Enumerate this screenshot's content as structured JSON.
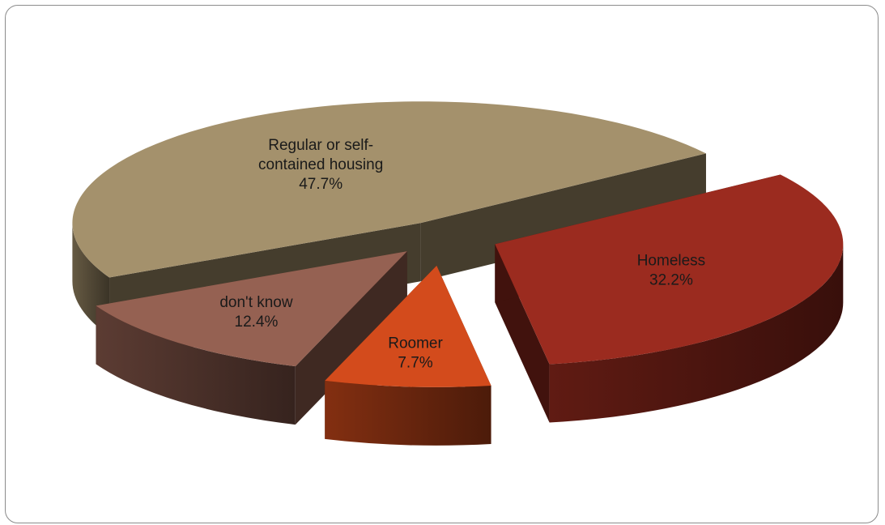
{
  "chart_data": {
    "type": "pie",
    "title": "",
    "legend": "none",
    "three_d": true,
    "exploded": true,
    "slices": [
      {
        "label_lines": [
          "Homeless"
        ],
        "percent_text": "32.2%",
        "value": 32.2,
        "color": "#9b2b1f"
      },
      {
        "label_lines": [
          "Regular or self-",
          "contained housing"
        ],
        "percent_text": "47.7%",
        "value": 47.7,
        "color": "#a4916c"
      },
      {
        "label_lines": [
          "don't know"
        ],
        "percent_text": "12.4%",
        "value": 12.4,
        "color": "#956152"
      },
      {
        "label_lines": [
          "Roomer"
        ],
        "percent_text": "7.7%",
        "value": 7.7,
        "color": "#d34b1c"
      }
    ]
  }
}
